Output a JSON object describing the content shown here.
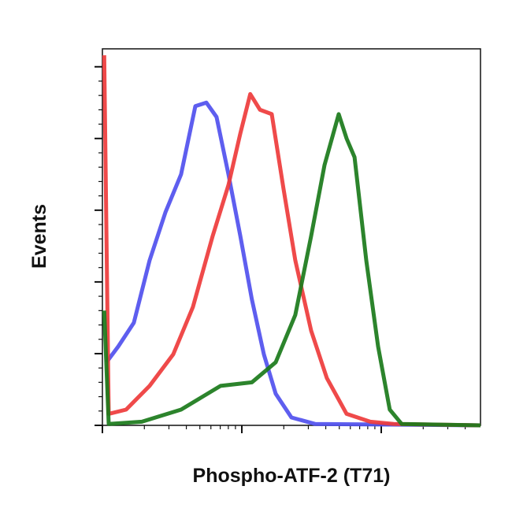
{
  "chart_data": {
    "type": "line",
    "xlabel": "Phospho-ATF-2 (T71)",
    "ylabel": "Events",
    "xscale": "log",
    "xlim": [
      1,
      515
    ],
    "ylim": [
      0,
      5.25
    ],
    "xticks": [
      1,
      10,
      100
    ],
    "xminorticks": [
      2,
      3,
      4,
      5,
      6,
      7,
      8,
      9,
      20,
      30,
      40,
      50,
      60,
      70,
      80,
      90,
      200,
      300,
      400
    ],
    "yticks": [
      0,
      1,
      2,
      3,
      4,
      5
    ],
    "yminorticks": [
      0.2,
      0.4,
      0.6,
      0.8,
      1.2,
      1.4,
      1.6,
      1.8,
      2.2,
      2.4,
      2.6,
      2.8,
      3.2,
      3.4,
      3.6,
      3.8,
      4.2,
      4.4,
      4.6,
      4.8
    ],
    "series": [
      {
        "color": "#5050ee",
        "x": [
          1.07,
          1.3,
          1.68,
          2.18,
          2.83,
          3.67,
          4.64,
          5.57,
          6.59,
          8.02,
          9.75,
          11.8,
          14.4,
          17.5,
          22.7,
          33.5,
          515
        ],
        "values": [
          0.88,
          1.1,
          1.43,
          2.3,
          2.97,
          3.5,
          4.45,
          4.5,
          4.3,
          3.5,
          2.64,
          1.76,
          0.99,
          0.44,
          0.11,
          0.02,
          0
        ]
      },
      {
        "color": "#ee3b3b",
        "x": [
          1.03,
          1.11,
          1.48,
          2.18,
          3.22,
          4.46,
          6.18,
          8.02,
          9.75,
          11.5,
          13.5,
          16.4,
          19.9,
          24.2,
          31.4,
          40.7,
          56.4,
          83.4,
          123,
          515
        ],
        "values": [
          5.16,
          0.16,
          0.22,
          0.55,
          0.99,
          1.65,
          2.64,
          3.35,
          4.07,
          4.62,
          4.4,
          4.34,
          3.3,
          2.3,
          1.32,
          0.66,
          0.16,
          0.05,
          0.02,
          0
        ]
      },
      {
        "color": "#1a7a1a",
        "x": [
          1.03,
          1.11,
          1.92,
          3.67,
          7.04,
          11.8,
          17.5,
          24.2,
          31.4,
          39.2,
          49.5,
          56.4,
          64.3,
          78.1,
          94.9,
          115,
          140,
          515
        ],
        "values": [
          1.6,
          0.02,
          0.05,
          0.22,
          0.55,
          0.6,
          0.88,
          1.54,
          2.64,
          3.63,
          4.34,
          4.0,
          3.74,
          2.3,
          1.1,
          0.22,
          0.02,
          0
        ]
      }
    ]
  }
}
